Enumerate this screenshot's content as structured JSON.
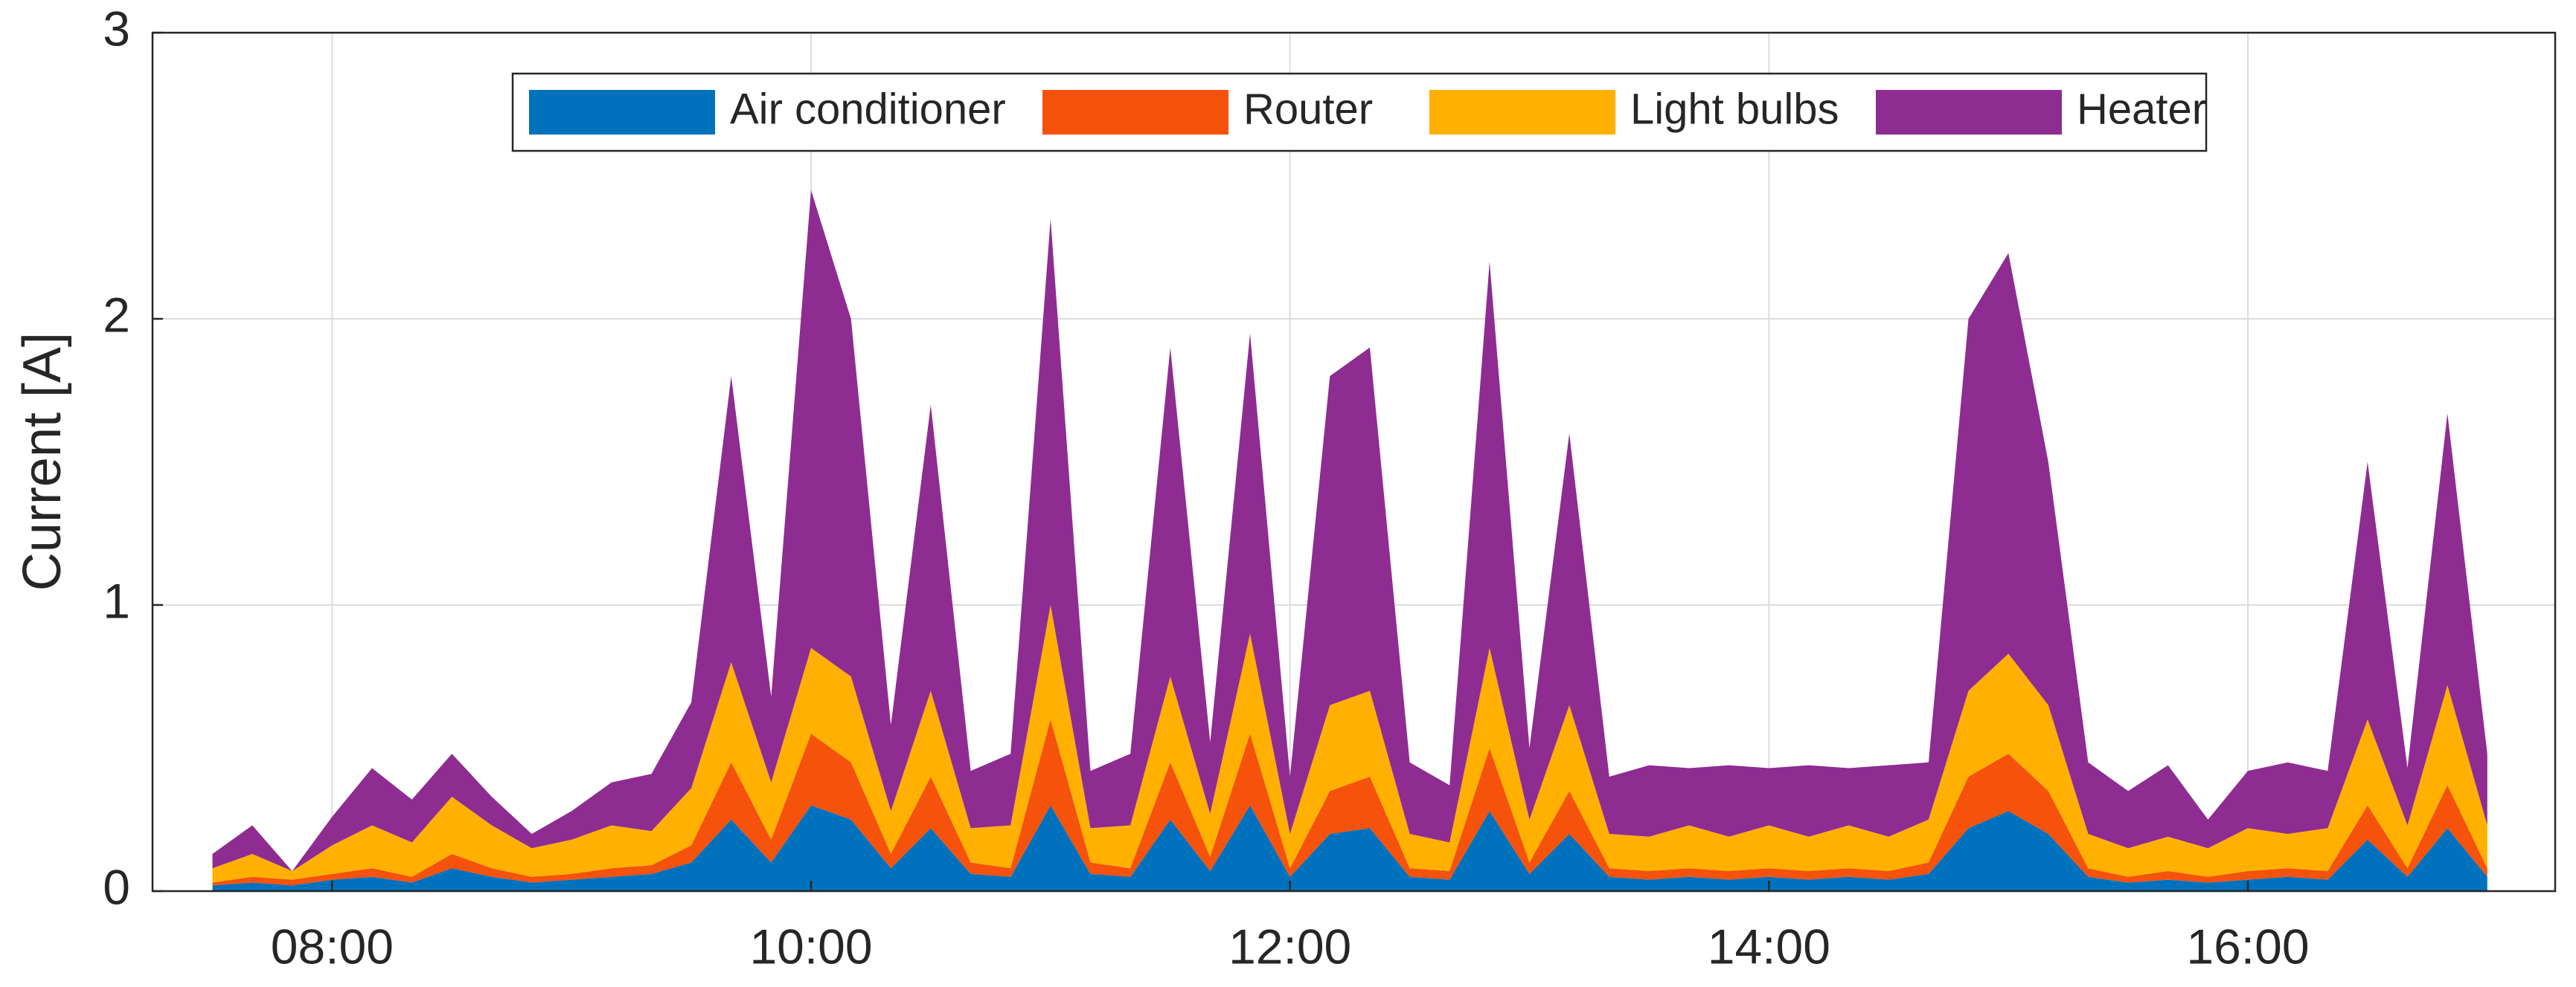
{
  "chart_data": {
    "type": "area",
    "y_label": "Current [A]",
    "x": [
      "07:30",
      "07:40",
      "07:50",
      "08:00",
      "08:10",
      "08:20",
      "08:30",
      "08:40",
      "08:50",
      "09:00",
      "09:10",
      "09:20",
      "09:30",
      "09:40",
      "09:50",
      "10:00",
      "10:10",
      "10:20",
      "10:30",
      "10:40",
      "10:50",
      "11:00",
      "11:10",
      "11:20",
      "11:30",
      "11:40",
      "11:50",
      "12:00",
      "12:10",
      "12:20",
      "12:30",
      "12:40",
      "12:50",
      "13:00",
      "13:10",
      "13:20",
      "13:30",
      "13:40",
      "13:50",
      "14:00",
      "14:10",
      "14:20",
      "14:30",
      "14:40",
      "14:50",
      "15:00",
      "15:10",
      "15:20",
      "15:30",
      "15:40",
      "15:50",
      "16:00",
      "16:10",
      "16:20",
      "16:30",
      "16:40",
      "16:50",
      "17:00"
    ],
    "series": [
      {
        "name": "Air conditioner",
        "color": "#0072BD",
        "values": [
          0.02,
          0.03,
          0.02,
          0.04,
          0.05,
          0.03,
          0.08,
          0.05,
          0.03,
          0.04,
          0.05,
          0.06,
          0.1,
          0.25,
          0.1,
          0.3,
          0.25,
          0.08,
          0.22,
          0.06,
          0.05,
          0.3,
          0.06,
          0.05,
          0.25,
          0.07,
          0.3,
          0.05,
          0.2,
          0.22,
          0.05,
          0.04,
          0.28,
          0.06,
          0.2,
          0.05,
          0.04,
          0.05,
          0.04,
          0.05,
          0.04,
          0.05,
          0.04,
          0.06,
          0.22,
          0.28,
          0.2,
          0.05,
          0.03,
          0.04,
          0.03,
          0.04,
          0.05,
          0.04,
          0.18,
          0.05,
          0.22,
          0.05
        ]
      },
      {
        "name": "Router",
        "color": "#F5520C",
        "values": [
          0.01,
          0.02,
          0.02,
          0.02,
          0.03,
          0.02,
          0.05,
          0.03,
          0.02,
          0.02,
          0.03,
          0.03,
          0.06,
          0.2,
          0.08,
          0.25,
          0.2,
          0.05,
          0.18,
          0.04,
          0.03,
          0.3,
          0.04,
          0.03,
          0.2,
          0.05,
          0.25,
          0.03,
          0.15,
          0.18,
          0.03,
          0.03,
          0.22,
          0.04,
          0.15,
          0.03,
          0.03,
          0.03,
          0.03,
          0.03,
          0.03,
          0.03,
          0.03,
          0.04,
          0.18,
          0.2,
          0.15,
          0.03,
          0.02,
          0.03,
          0.02,
          0.03,
          0.03,
          0.03,
          0.12,
          0.03,
          0.15,
          0.03
        ]
      },
      {
        "name": "Light bulbs",
        "color": "#FFB000",
        "values": [
          0.05,
          0.08,
          0.03,
          0.1,
          0.15,
          0.12,
          0.2,
          0.15,
          0.1,
          0.12,
          0.15,
          0.12,
          0.2,
          0.35,
          0.2,
          0.3,
          0.3,
          0.15,
          0.3,
          0.12,
          0.15,
          0.4,
          0.12,
          0.15,
          0.3,
          0.15,
          0.35,
          0.12,
          0.3,
          0.3,
          0.12,
          0.1,
          0.35,
          0.15,
          0.3,
          0.12,
          0.12,
          0.15,
          0.12,
          0.15,
          0.12,
          0.15,
          0.12,
          0.15,
          0.3,
          0.35,
          0.3,
          0.12,
          0.1,
          0.12,
          0.1,
          0.15,
          0.12,
          0.15,
          0.3,
          0.15,
          0.35,
          0.15
        ]
      },
      {
        "name": "Heater",
        "color": "#8E2C92",
        "values": [
          0.05,
          0.1,
          0.0,
          0.1,
          0.2,
          0.15,
          0.15,
          0.1,
          0.05,
          0.1,
          0.15,
          0.2,
          0.3,
          1.0,
          0.3,
          1.6,
          1.25,
          0.3,
          1.0,
          0.2,
          0.25,
          1.35,
          0.2,
          0.25,
          1.15,
          0.25,
          1.05,
          0.2,
          1.15,
          1.2,
          0.25,
          0.2,
          1.35,
          0.25,
          0.95,
          0.2,
          0.25,
          0.2,
          0.25,
          0.2,
          0.25,
          0.2,
          0.25,
          0.2,
          1.3,
          1.4,
          0.85,
          0.25,
          0.2,
          0.25,
          0.1,
          0.2,
          0.25,
          0.2,
          0.9,
          0.2,
          0.95,
          0.25
        ]
      }
    ],
    "xlim": [
      "07:15",
      "17:17"
    ],
    "xticks": [
      "08:00",
      "10:00",
      "12:00",
      "14:00",
      "16:00"
    ],
    "ylim": [
      0,
      3
    ],
    "yticks": [
      0,
      1,
      2,
      3
    ],
    "grid": true,
    "legend": "top"
  }
}
